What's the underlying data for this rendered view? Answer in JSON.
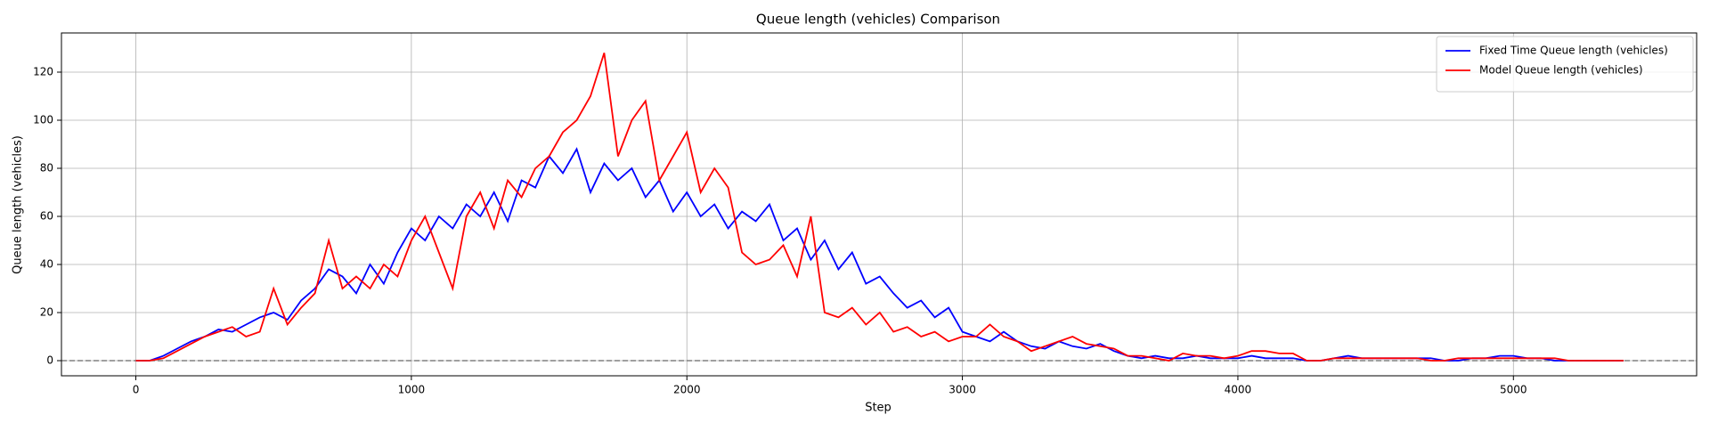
{
  "chart_data": {
    "type": "line",
    "title": "Queue length (vehicles) Comparison",
    "xlabel": "Step",
    "ylabel": "Queue length (vehicles)",
    "x": [
      0,
      50,
      100,
      150,
      200,
      250,
      300,
      350,
      400,
      450,
      500,
      550,
      600,
      650,
      700,
      750,
      800,
      850,
      900,
      950,
      1000,
      1050,
      1100,
      1150,
      1200,
      1250,
      1300,
      1350,
      1400,
      1450,
      1500,
      1550,
      1600,
      1650,
      1700,
      1750,
      1800,
      1850,
      1900,
      1950,
      2000,
      2050,
      2100,
      2150,
      2200,
      2250,
      2300,
      2350,
      2400,
      2450,
      2500,
      2550,
      2600,
      2650,
      2700,
      2750,
      2800,
      2850,
      2900,
      2950,
      3000,
      3050,
      3100,
      3150,
      3200,
      3250,
      3300,
      3350,
      3400,
      3450,
      3500,
      3550,
      3600,
      3650,
      3700,
      3750,
      3800,
      3850,
      3900,
      3950,
      4000,
      4050,
      4100,
      4150,
      4200,
      4250,
      4300,
      4350,
      4400,
      4450,
      4500,
      4550,
      4600,
      4650,
      4700,
      4750,
      4800,
      4850,
      4900,
      4950,
      5000,
      5050,
      5100,
      5150,
      5200,
      5250,
      5300,
      5350,
      5400
    ],
    "series": [
      {
        "name": "Fixed Time Queue length (vehicles)",
        "color": "#0000ff",
        "values": [
          0,
          0,
          2,
          5,
          8,
          10,
          13,
          12,
          15,
          18,
          20,
          17,
          25,
          30,
          38,
          35,
          28,
          40,
          32,
          45,
          55,
          50,
          60,
          55,
          65,
          60,
          70,
          58,
          75,
          72,
          85,
          78,
          88,
          70,
          82,
          75,
          80,
          68,
          75,
          62,
          70,
          60,
          65,
          55,
          62,
          58,
          65,
          50,
          55,
          42,
          50,
          38,
          45,
          32,
          35,
          28,
          22,
          25,
          18,
          22,
          12,
          10,
          8,
          12,
          8,
          6,
          5,
          8,
          6,
          5,
          7,
          4,
          2,
          1,
          2,
          1,
          1,
          2,
          1,
          1,
          1,
          2,
          1,
          1,
          1,
          0,
          0,
          1,
          2,
          1,
          1,
          1,
          1,
          1,
          1,
          0,
          0,
          1,
          1,
          2,
          2,
          1,
          1,
          0,
          0,
          0,
          0,
          0,
          0
        ]
      },
      {
        "name": "Model Queue length (vehicles)",
        "color": "#ff0000",
        "values": [
          0,
          0,
          1,
          4,
          7,
          10,
          12,
          14,
          10,
          12,
          30,
          15,
          22,
          28,
          50,
          30,
          35,
          30,
          40,
          35,
          50,
          60,
          45,
          30,
          60,
          70,
          55,
          75,
          68,
          80,
          85,
          95,
          100,
          110,
          128,
          85,
          100,
          108,
          75,
          85,
          95,
          70,
          80,
          72,
          45,
          40,
          42,
          48,
          35,
          60,
          20,
          18,
          22,
          15,
          20,
          12,
          14,
          10,
          12,
          8,
          10,
          10,
          15,
          10,
          8,
          4,
          6,
          8,
          10,
          7,
          6,
          5,
          2,
          2,
          1,
          0,
          3,
          2,
          2,
          1,
          2,
          4,
          4,
          3,
          3,
          0,
          0,
          1,
          1,
          1,
          1,
          1,
          1,
          1,
          0,
          0,
          1,
          1,
          1,
          1,
          1,
          1,
          1,
          1,
          0,
          0,
          0,
          0,
          0
        ]
      }
    ],
    "hline": 0,
    "xlim": [
      -270,
      5665
    ],
    "ylim": [
      -6.3,
      136.3
    ],
    "xticks": [
      0,
      1000,
      2000,
      3000,
      4000,
      5000
    ],
    "yticks": [
      0,
      20,
      40,
      60,
      80,
      100,
      120
    ],
    "grid": true,
    "legend": "upper right"
  }
}
